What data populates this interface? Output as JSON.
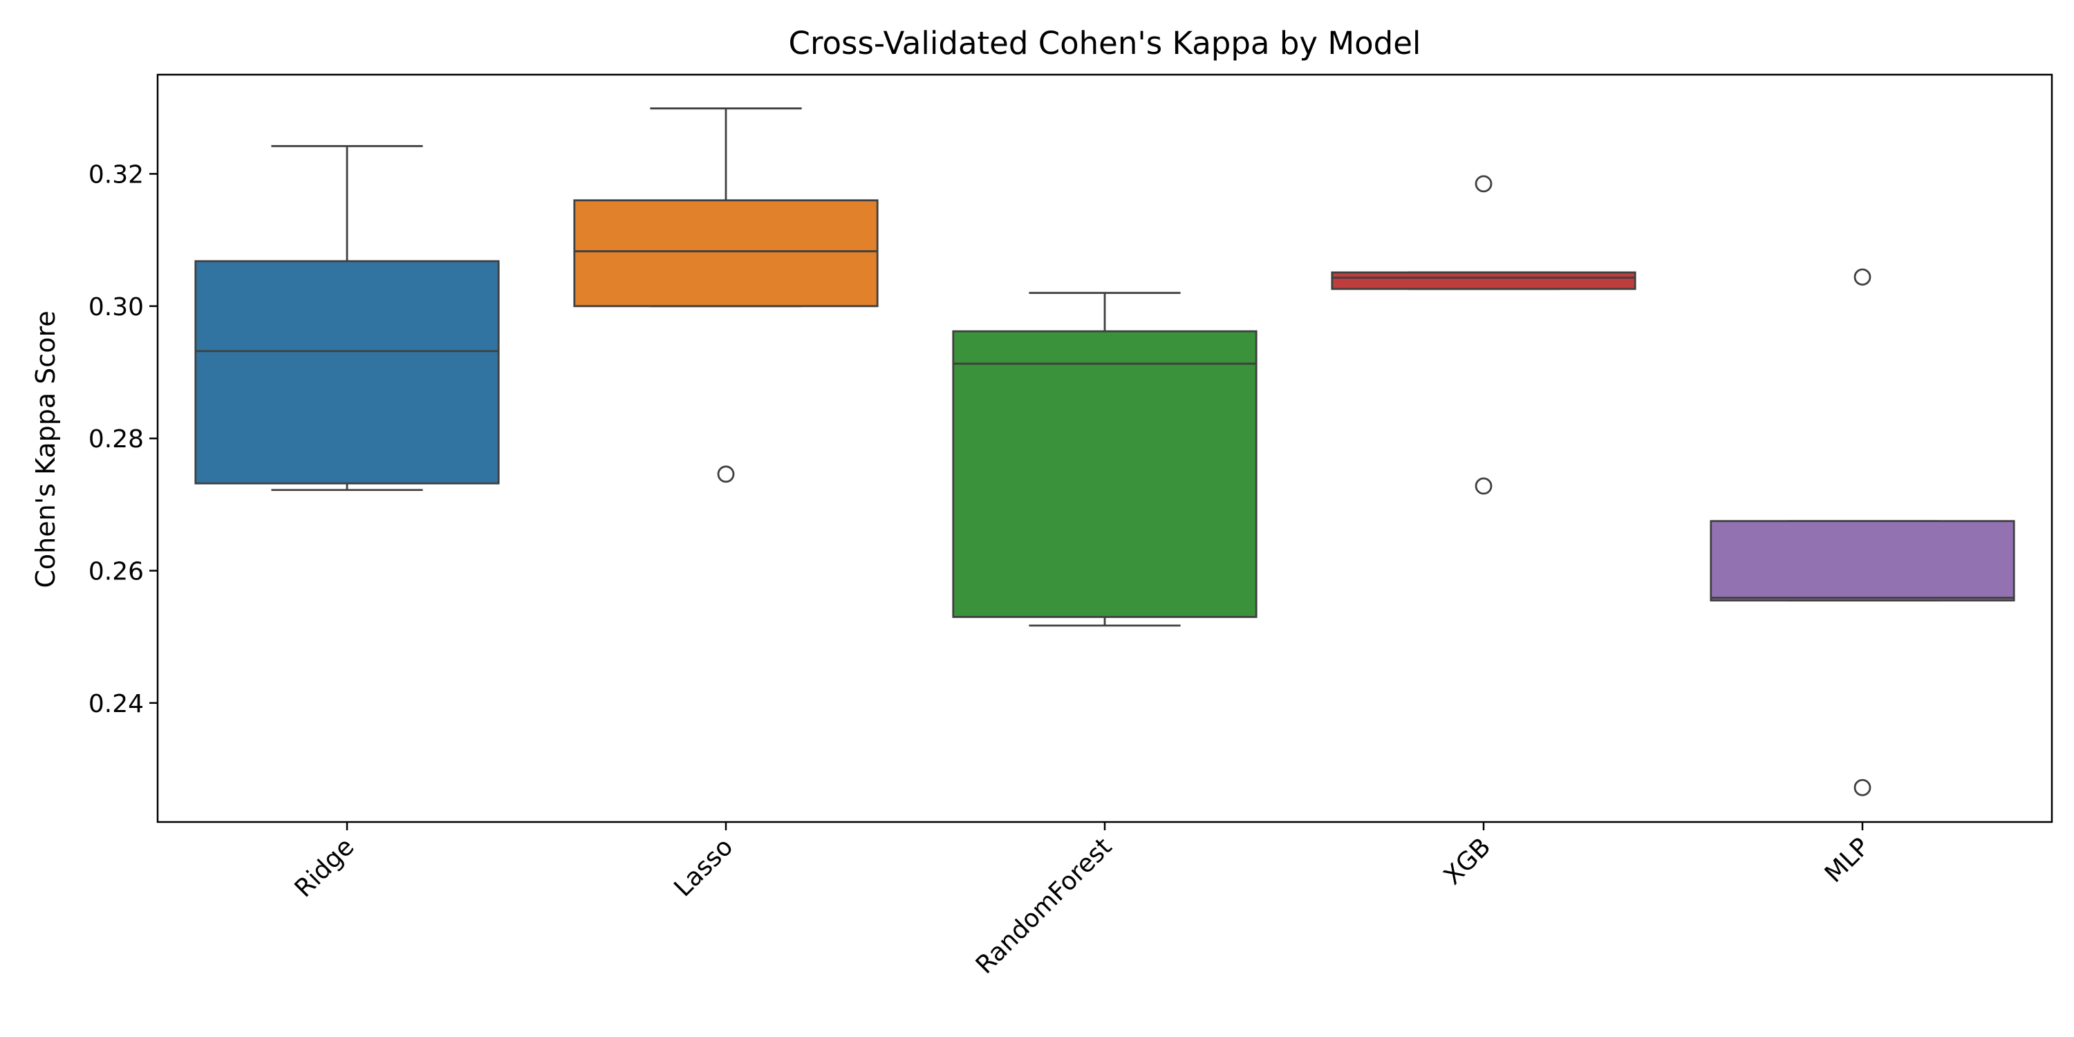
{
  "chart_data": {
    "type": "box",
    "title": "Cross-Validated Cohen's Kappa by Model",
    "xlabel": "",
    "ylabel": "Cohen's Kappa Score",
    "ylim": [
      0.222,
      0.335
    ],
    "yticks": [
      0.24,
      0.26,
      0.28,
      0.3,
      0.32
    ],
    "ytick_labels": [
      "0.24",
      "0.26",
      "0.28",
      "0.30",
      "0.32"
    ],
    "grid": false,
    "legend": "none",
    "categories": [
      "Ridge",
      "Lasso",
      "RandomForest",
      "XGB",
      "MLP"
    ],
    "boxes": [
      {
        "category": "Ridge",
        "whisker_low": 0.2722,
        "q1": 0.2732,
        "median": 0.2932,
        "q3": 0.3068,
        "whisker_high": 0.3242,
        "outliers": [],
        "color": "#3274a1"
      },
      {
        "category": "Lasso",
        "whisker_low": 0.3,
        "q1": 0.3,
        "median": 0.3083,
        "q3": 0.316,
        "whisker_high": 0.3299,
        "outliers": [
          0.2746
        ],
        "color": "#e1812c"
      },
      {
        "category": "RandomForest",
        "whisker_low": 0.2517,
        "q1": 0.253,
        "median": 0.2913,
        "q3": 0.2962,
        "whisker_high": 0.302,
        "outliers": [],
        "color": "#3a923a"
      },
      {
        "category": "XGB",
        "whisker_low": 0.3026,
        "q1": 0.3026,
        "median": 0.3043,
        "q3": 0.3051,
        "whisker_high": 0.3051,
        "outliers": [
          0.3185,
          0.2728
        ],
        "color": "#c03d3e"
      },
      {
        "category": "MLP",
        "whisker_low": 0.2555,
        "q1": 0.2555,
        "median": 0.2559,
        "q3": 0.2675,
        "whisker_high": 0.2675,
        "outliers": [
          0.3044,
          0.2272
        ],
        "color": "#9372b2"
      }
    ]
  }
}
